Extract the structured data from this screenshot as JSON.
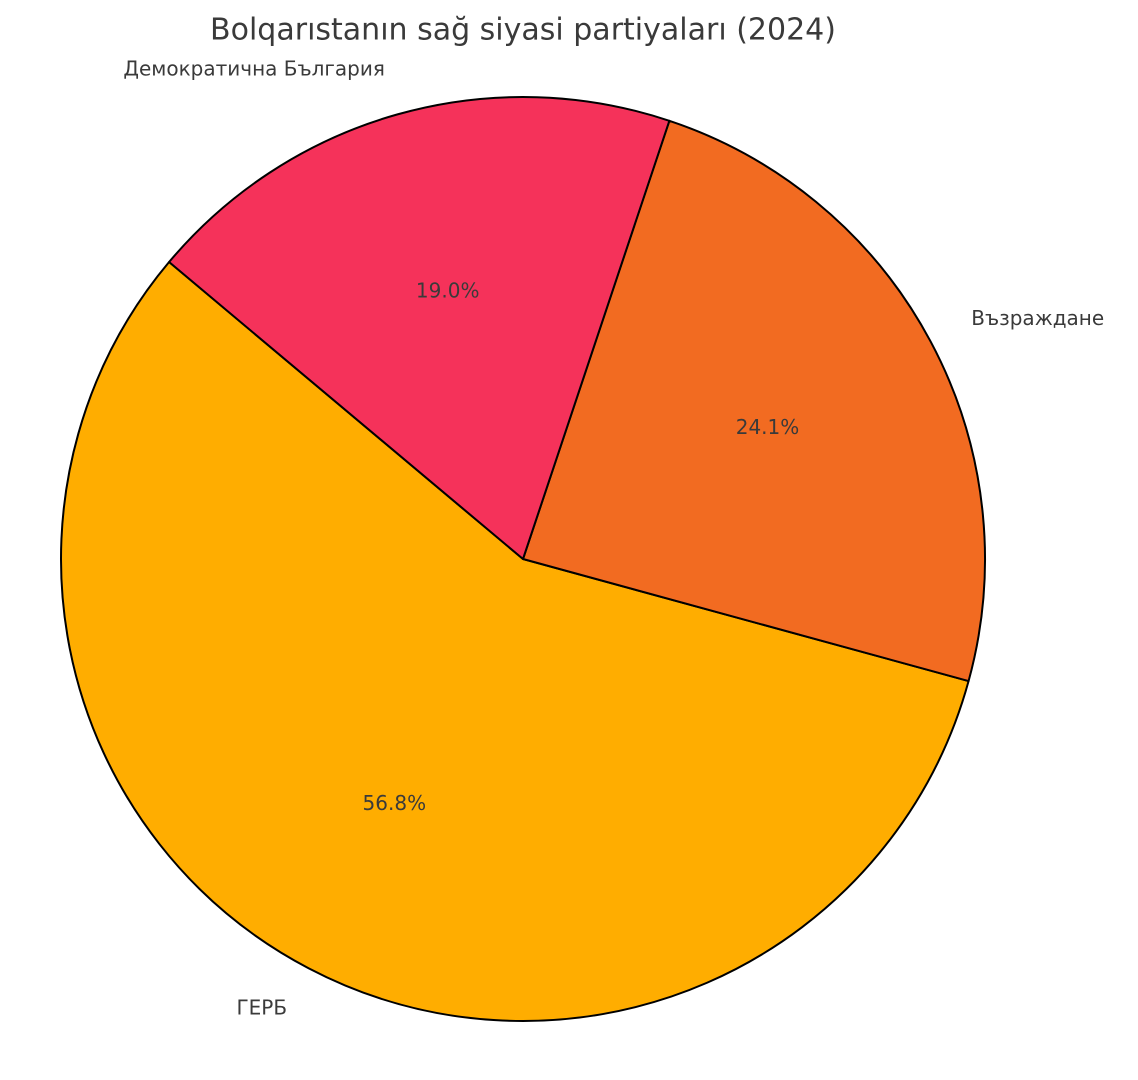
{
  "chart_data": {
    "type": "pie",
    "title": "Bolqarıstanın sağ siyasi partiyaları (2024)",
    "categories": [
      "ГЕРБ",
      "Възраждане",
      "Демократична България"
    ],
    "values": [
      56.8,
      24.1,
      19.0
    ],
    "value_labels": [
      "56.8%",
      "24.1%",
      "19.0%"
    ],
    "colors": [
      "#ffad00",
      "#f26b21",
      "#f5325a"
    ]
  }
}
